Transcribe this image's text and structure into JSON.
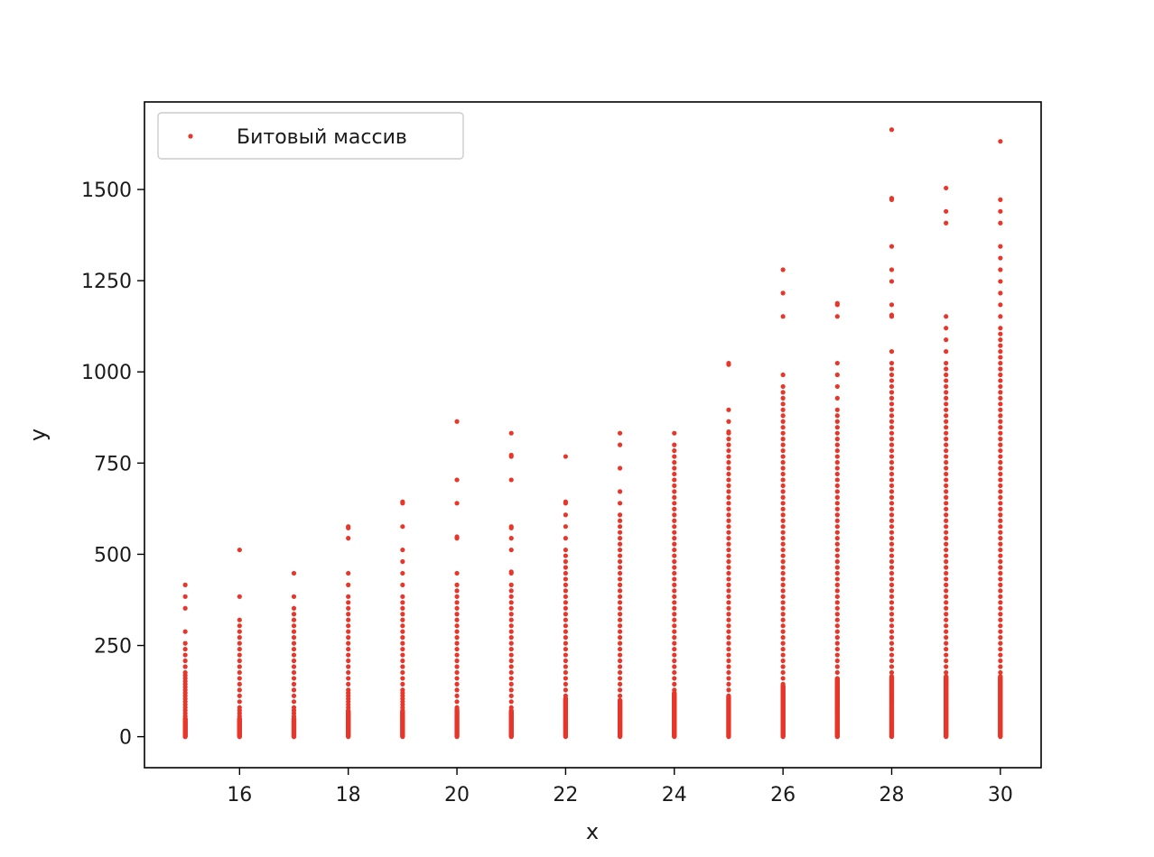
{
  "chart_data": {
    "type": "scatter",
    "title": "",
    "xlabel": "x",
    "ylabel": "y",
    "xlim": [
      14.25,
      30.75
    ],
    "ylim": [
      -85,
      1740
    ],
    "xticks": [
      16,
      18,
      20,
      22,
      24,
      26,
      28,
      30
    ],
    "yticks": [
      0,
      250,
      500,
      750,
      1000,
      1250,
      1500
    ],
    "grid": false,
    "legend_position": "top-left",
    "marker_color": "#e8362a",
    "series": [
      {
        "name": "Битовый массив",
        "columns": [
          {
            "x": 15,
            "dense_max": 50,
            "sparse": [
              0,
              4,
              8,
              12,
              16,
              20,
              24,
              28,
              32,
              36,
              40,
              44,
              48,
              56,
              64,
              72,
              80,
              88,
              96,
              104,
              112,
              120,
              128,
              136,
              144,
              152,
              160,
              168,
              176,
              192,
              208,
              224,
              240,
              256,
              288,
              352,
              384,
              416
            ]
          },
          {
            "x": 16,
            "dense_max": 50,
            "sparse": [
              0,
              6,
              12,
              18,
              24,
              30,
              36,
              42,
              48,
              56,
              64,
              72,
              80,
              96,
              112,
              128,
              144,
              160,
              176,
              192,
              208,
              224,
              240,
              256,
              272,
              288,
              304,
              320,
              384,
              512
            ]
          },
          {
            "x": 17,
            "dense_max": 50,
            "sparse": [
              0,
              8,
              16,
              24,
              32,
              40,
              48,
              56,
              64,
              72,
              80,
              96,
              112,
              128,
              144,
              160,
              176,
              192,
              208,
              224,
              240,
              256,
              272,
              288,
              304,
              320,
              336,
              352,
              384,
              448
            ]
          },
          {
            "x": 18,
            "dense_max": 70,
            "sparse": [
              72,
              80,
              88,
              96,
              104,
              112,
              120,
              128,
              144,
              160,
              176,
              192,
              208,
              224,
              240,
              256,
              272,
              288,
              304,
              320,
              336,
              352,
              368,
              384,
              416,
              448,
              544,
              572,
              576
            ]
          },
          {
            "x": 19,
            "dense_max": 70,
            "sparse": [
              72,
              80,
              88,
              96,
              104,
              112,
              120,
              128,
              144,
              160,
              176,
              192,
              208,
              224,
              240,
              256,
              272,
              288,
              304,
              320,
              336,
              352,
              368,
              384,
              416,
              448,
              480,
              512,
              576,
              640,
              644
            ]
          },
          {
            "x": 20,
            "dense_max": 75,
            "sparse": [
              80,
              96,
              112,
              128,
              144,
              160,
              176,
              192,
              208,
              224,
              240,
              256,
              272,
              288,
              304,
              320,
              336,
              352,
              368,
              384,
              400,
              416,
              448,
              544,
              548,
              640,
              704,
              864
            ]
          },
          {
            "x": 21,
            "dense_max": 70,
            "sparse": [
              72,
              80,
              96,
              112,
              128,
              144,
              160,
              176,
              192,
              208,
              224,
              240,
              256,
              272,
              288,
              304,
              320,
              336,
              352,
              368,
              384,
              400,
              416,
              448,
              452,
              512,
              544,
              572,
              576,
              704,
              768,
              772,
              832
            ]
          },
          {
            "x": 22,
            "dense_max": 105,
            "sparse": [
              112,
              128,
              144,
              160,
              176,
              192,
              208,
              224,
              240,
              256,
              272,
              288,
              304,
              320,
              336,
              352,
              368,
              384,
              400,
              416,
              432,
              448,
              464,
              480,
              496,
              512,
              544,
              576,
              608,
              640,
              644,
              768
            ]
          },
          {
            "x": 23,
            "dense_max": 100,
            "sparse": [
              112,
              128,
              144,
              160,
              176,
              192,
              208,
              224,
              240,
              256,
              272,
              288,
              304,
              320,
              336,
              352,
              368,
              384,
              400,
              416,
              432,
              448,
              464,
              480,
              496,
              512,
              528,
              544,
              560,
              576,
              592,
              608,
              640,
              672,
              736,
              800,
              832
            ]
          },
          {
            "x": 24,
            "dense_max": 120,
            "sparse": [
              128,
              144,
              160,
              176,
              192,
              208,
              224,
              240,
              256,
              272,
              288,
              304,
              320,
              336,
              352,
              368,
              384,
              400,
              416,
              432,
              448,
              464,
              480,
              496,
              512,
              528,
              544,
              560,
              576,
              592,
              608,
              624,
              640,
              656,
              672,
              688,
              704,
              720,
              736,
              752,
              768,
              784,
              800,
              832
            ]
          },
          {
            "x": 25,
            "dense_max": 110,
            "sparse": [
              112,
              128,
              144,
              160,
              176,
              192,
              208,
              224,
              240,
              256,
              272,
              288,
              304,
              320,
              336,
              352,
              368,
              384,
              400,
              416,
              432,
              448,
              464,
              480,
              496,
              512,
              528,
              544,
              560,
              576,
              592,
              608,
              624,
              640,
              656,
              672,
              688,
              704,
              720,
              736,
              752,
              768,
              784,
              800,
              816,
              832,
              836,
              864,
              896,
              1020,
              1024
            ]
          },
          {
            "x": 26,
            "dense_max": 140,
            "sparse": [
              144,
              160,
              176,
              192,
              208,
              224,
              240,
              256,
              272,
              288,
              304,
              320,
              336,
              352,
              368,
              384,
              400,
              416,
              432,
              448,
              464,
              480,
              496,
              512,
              528,
              544,
              560,
              576,
              592,
              608,
              624,
              640,
              656,
              672,
              688,
              704,
              720,
              736,
              752,
              768,
              784,
              800,
              816,
              832,
              848,
              864,
              880,
              896,
              912,
              928,
              944,
              960,
              992,
              1152,
              1216,
              1280
            ]
          },
          {
            "x": 27,
            "dense_max": 160,
            "sparse": [
              176,
              192,
              208,
              224,
              240,
              256,
              272,
              288,
              304,
              320,
              336,
              352,
              368,
              384,
              400,
              416,
              432,
              448,
              464,
              480,
              496,
              512,
              528,
              544,
              560,
              576,
              592,
              608,
              624,
              640,
              656,
              672,
              688,
              704,
              720,
              736,
              752,
              768,
              784,
              800,
              816,
              832,
              848,
              864,
              880,
              896,
              928,
              960,
              992,
              1024,
              1152,
              1184,
              1188
            ]
          },
          {
            "x": 28,
            "dense_max": 165,
            "sparse": [
              176,
              192,
              208,
              224,
              240,
              256,
              272,
              288,
              304,
              320,
              336,
              352,
              368,
              384,
              400,
              416,
              432,
              448,
              464,
              480,
              496,
              512,
              528,
              544,
              560,
              576,
              592,
              608,
              624,
              640,
              656,
              672,
              688,
              704,
              720,
              736,
              752,
              768,
              784,
              800,
              816,
              832,
              848,
              864,
              880,
              896,
              912,
              928,
              944,
              960,
              976,
              992,
              1008,
              1024,
              1056,
              1152,
              1156,
              1184,
              1248,
              1280,
              1344,
              1472,
              1476,
              1664
            ]
          },
          {
            "x": 29,
            "dense_max": 165,
            "sparse": [
              176,
              192,
              208,
              224,
              240,
              256,
              272,
              288,
              304,
              320,
              336,
              352,
              368,
              384,
              400,
              416,
              432,
              448,
              464,
              480,
              496,
              512,
              528,
              544,
              560,
              576,
              592,
              608,
              624,
              640,
              656,
              672,
              688,
              704,
              720,
              736,
              752,
              768,
              784,
              800,
              816,
              832,
              848,
              864,
              880,
              896,
              912,
              928,
              944,
              960,
              976,
              992,
              1008,
              1024,
              1056,
              1088,
              1120,
              1152,
              1408,
              1440,
              1504
            ]
          },
          {
            "x": 30,
            "dense_max": 165,
            "sparse": [
              176,
              192,
              208,
              224,
              240,
              256,
              272,
              288,
              304,
              320,
              336,
              352,
              368,
              384,
              400,
              416,
              432,
              448,
              464,
              480,
              496,
              512,
              528,
              544,
              560,
              576,
              592,
              608,
              624,
              640,
              656,
              672,
              688,
              704,
              720,
              736,
              752,
              768,
              784,
              800,
              816,
              832,
              848,
              864,
              880,
              896,
              912,
              928,
              944,
              960,
              976,
              992,
              1008,
              1024,
              1040,
              1056,
              1072,
              1088,
              1104,
              1120,
              1152,
              1184,
              1216,
              1248,
              1280,
              1312,
              1344,
              1408,
              1440,
              1472,
              1632
            ]
          }
        ]
      }
    ]
  }
}
